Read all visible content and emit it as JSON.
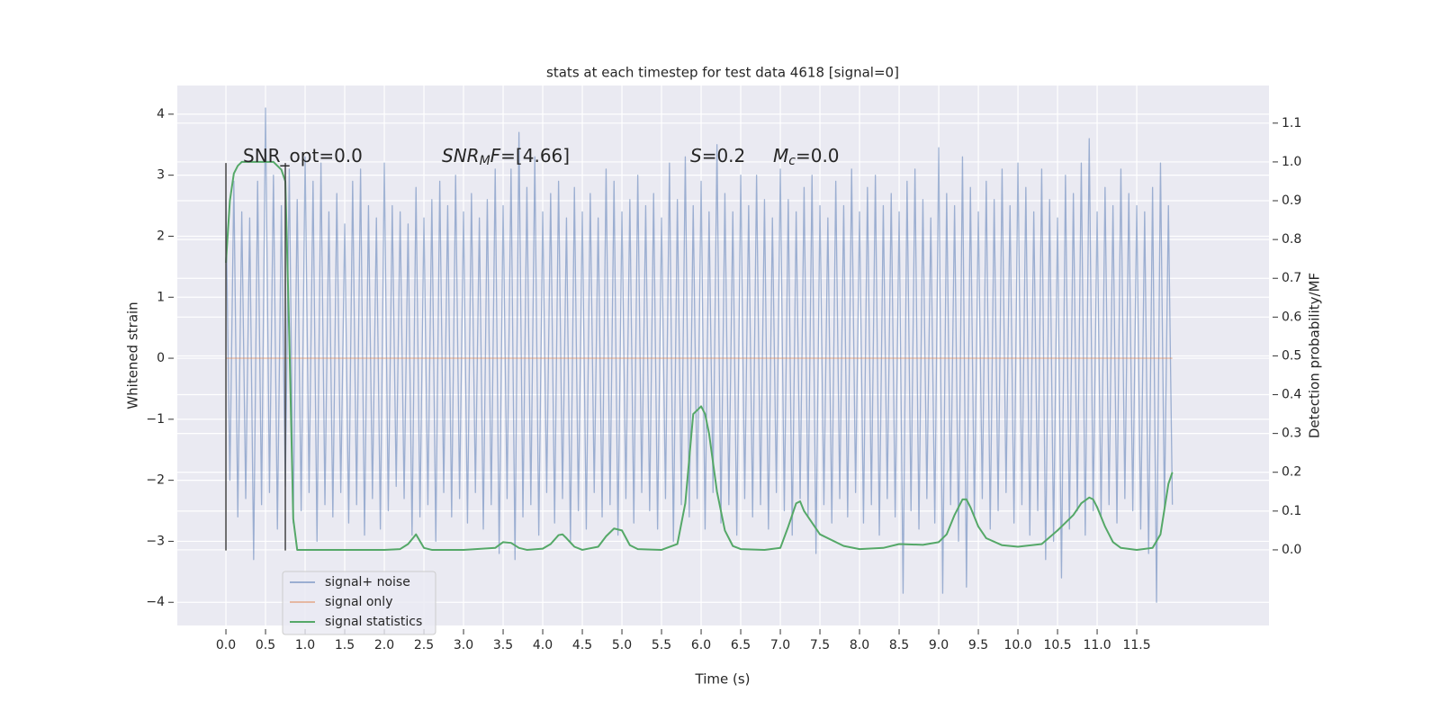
{
  "chart_data": {
    "type": "line",
    "title": "stats at each timestep for test data 4618 [signal=0]",
    "xlabel": "Time (s)",
    "ylabel": "Whitened strain",
    "y2label": "Detection probability/MF",
    "xlim": [
      -0.614,
      13.17
    ],
    "ylim": [
      -4.38,
      4.47
    ],
    "y2lim": [
      -0.195,
      1.197
    ],
    "xticks": [
      {
        "value": 0,
        "label": "0.0"
      },
      0.5,
      {
        "value": 1,
        "label": "1.0"
      },
      1.5,
      {
        "value": 2,
        "label": "2.0"
      },
      2.5,
      {
        "value": 3,
        "label": "3.0"
      },
      3.5,
      {
        "value": 4,
        "label": "4.0"
      },
      4.5,
      {
        "value": 5,
        "label": "5.0"
      },
      5.5,
      {
        "value": 6,
        "label": "6.0"
      },
      6.5,
      {
        "value": 7,
        "label": "7.0"
      },
      7.5,
      {
        "value": 8,
        "label": "8.0"
      },
      8.5,
      {
        "value": 9,
        "label": "9.0"
      },
      9.5,
      {
        "value": 10,
        "label": "10.0"
      },
      10.5,
      {
        "value": 11,
        "label": "11.0"
      },
      11.5
    ],
    "yticks": [
      {
        "value": -4,
        "label": "−4"
      },
      {
        "value": -3,
        "label": "−3"
      },
      {
        "value": -2,
        "label": "−2"
      },
      {
        "value": -1,
        "label": "−1"
      },
      0,
      1,
      2,
      3,
      4
    ],
    "y2ticks": [
      {
        "value": 0,
        "label": "0.0"
      },
      0.1,
      0.2,
      0.3,
      0.4,
      0.5,
      0.6,
      0.7,
      0.8,
      0.9,
      {
        "value": 1,
        "label": "1.0"
      },
      1.1
    ],
    "grid": true,
    "legend": "lower left",
    "x": [
      0,
      0.05,
      0.1,
      0.15,
      0.2,
      0.25,
      0.3,
      0.35,
      0.4,
      0.45,
      0.5,
      0.55,
      0.6,
      0.65,
      0.7,
      0.75,
      0.8,
      0.85,
      0.9,
      0.95,
      1,
      1.05,
      1.1,
      1.15,
      1.2,
      1.25,
      1.3,
      1.35,
      1.4,
      1.45,
      1.5,
      1.55,
      1.6,
      1.65,
      1.7,
      1.75,
      1.8,
      1.85,
      1.9,
      1.95,
      2,
      2.05,
      2.1,
      2.15,
      2.2,
      2.25,
      2.3,
      2.35,
      2.4,
      2.45,
      2.5,
      2.55,
      2.6,
      2.65,
      2.7,
      2.75,
      2.8,
      2.85,
      2.9,
      2.95,
      3,
      3.05,
      3.1,
      3.15,
      3.2,
      3.25,
      3.3,
      3.35,
      3.4,
      3.45,
      3.5,
      3.55,
      3.6,
      3.65,
      3.7,
      3.75,
      3.8,
      3.85,
      3.9,
      3.95,
      4,
      4.05,
      4.1,
      4.15,
      4.2,
      4.25,
      4.3,
      4.35,
      4.4,
      4.45,
      4.5,
      4.55,
      4.6,
      4.65,
      4.7,
      4.75,
      4.8,
      4.85,
      4.9,
      4.95,
      5,
      5.05,
      5.1,
      5.15,
      5.2,
      5.25,
      5.3,
      5.35,
      5.4,
      5.45,
      5.5,
      5.55,
      5.6,
      5.65,
      5.7,
      5.75,
      5.8,
      5.85,
      5.9,
      5.95,
      6,
      6.05,
      6.1,
      6.15,
      6.2,
      6.25,
      6.3,
      6.35,
      6.4,
      6.45,
      6.5,
      6.55,
      6.6,
      6.65,
      6.7,
      6.75,
      6.8,
      6.85,
      6.9,
      6.95,
      7,
      7.05,
      7.1,
      7.15,
      7.2,
      7.25,
      7.3,
      7.35,
      7.4,
      7.45,
      7.5,
      7.55,
      7.6,
      7.65,
      7.7,
      7.75,
      7.8,
      7.85,
      7.9,
      7.95,
      8,
      8.05,
      8.1,
      8.15,
      8.2,
      8.25,
      8.3,
      8.35,
      8.4,
      8.45,
      8.5,
      8.55,
      8.6,
      8.65,
      8.7,
      8.75,
      8.8,
      8.85,
      8.9,
      8.95,
      9,
      9.05,
      9.1,
      9.15,
      9.2,
      9.25,
      9.3,
      9.35,
      9.4,
      9.45,
      9.5,
      9.55,
      9.6,
      9.65,
      9.7,
      9.75,
      9.8,
      9.85,
      9.9,
      9.95,
      10,
      10.05,
      10.1,
      10.15,
      10.2,
      10.25,
      10.3,
      10.35,
      10.4,
      10.45,
      10.5,
      10.55,
      10.6,
      10.65,
      10.7,
      10.75,
      10.8,
      10.85,
      10.9,
      10.95,
      11,
      11.05,
      11.1,
      11.15,
      11.2,
      11.25,
      11.3,
      11.35,
      11.4,
      11.45,
      11.5,
      11.55,
      11.6,
      11.65,
      11.7,
      11.75,
      11.8,
      11.85,
      11.9,
      11.95
    ],
    "series": [
      {
        "name": "signal+ noise",
        "color": "#4c72b0",
        "alpha": 0.5,
        "axis": "y",
        "values": [
          2.6,
          -2.0,
          2.9,
          -2.6,
          2.4,
          -2.3,
          2.3,
          -3.3,
          2.9,
          -2.4,
          4.1,
          -2.2,
          3.0,
          -2.8,
          2.5,
          -2.1,
          3.1,
          -2.7,
          2.6,
          -2.5,
          3.3,
          -2.2,
          2.9,
          -3.0,
          3.2,
          -2.4,
          2.4,
          -2.6,
          2.7,
          -2.2,
          2.2,
          -2.7,
          2.9,
          -2.4,
          3.1,
          -2.9,
          2.5,
          -2.3,
          2.3,
          -2.8,
          3.2,
          -2.5,
          2.5,
          -2.1,
          2.4,
          -2.3,
          2.2,
          -2.9,
          2.8,
          -2.6,
          2.3,
          -2.4,
          2.6,
          -3.0,
          2.9,
          -2.2,
          2.5,
          -2.6,
          3.0,
          -2.3,
          2.4,
          -2.7,
          2.7,
          -2.2,
          2.3,
          -2.8,
          2.6,
          -2.4,
          3.1,
          -3.2,
          2.5,
          -2.3,
          3.1,
          -3.3,
          3.7,
          -2.6,
          2.8,
          -2.4,
          3.3,
          -2.9,
          2.4,
          -2.2,
          2.7,
          -2.7,
          2.9,
          -2.3,
          2.3,
          -3.0,
          2.8,
          -2.5,
          2.4,
          -2.8,
          2.7,
          -2.2,
          2.3,
          -2.6,
          3.1,
          -2.4,
          2.9,
          -2.9,
          2.4,
          -2.3,
          2.6,
          -2.7,
          3.0,
          -2.2,
          2.5,
          -2.5,
          2.7,
          -2.8,
          2.3,
          -2.3,
          3.2,
          -3.0,
          2.6,
          -2.4,
          3.3,
          -2.6,
          2.5,
          -2.3,
          2.9,
          -2.8,
          2.4,
          -2.2,
          3.5,
          -2.7,
          2.7,
          -2.4,
          2.4,
          -2.9,
          3.0,
          -2.3,
          2.5,
          -2.6,
          3.0,
          -2.4,
          2.6,
          -2.8,
          2.3,
          -2.2,
          3.1,
          -2.5,
          2.6,
          -2.9,
          2.4,
          -2.3,
          2.8,
          -2.6,
          3.0,
          -3.2,
          2.5,
          -2.4,
          2.3,
          -2.7,
          2.9,
          -2.3,
          2.5,
          -2.6,
          3.1,
          -2.2,
          2.4,
          -2.7,
          2.8,
          -2.4,
          3.0,
          -2.9,
          2.5,
          -2.3,
          2.7,
          -2.6,
          2.4,
          -3.85,
          2.9,
          -2.5,
          3.1,
          -2.8,
          2.6,
          -2.3,
          2.3,
          -2.7,
          3.45,
          -3.85,
          2.7,
          -2.4,
          2.5,
          -3.0,
          3.3,
          -3.75,
          2.8,
          -2.6,
          2.4,
          -2.3,
          2.9,
          -2.8,
          2.6,
          -2.5,
          3.1,
          -2.2,
          2.5,
          -2.7,
          3.2,
          -2.4,
          2.8,
          -2.9,
          2.4,
          -2.5,
          3.1,
          -3.3,
          2.6,
          -3.0,
          2.3,
          -3.6,
          3.0,
          -2.8,
          2.7,
          -2.5,
          3.2,
          -2.9,
          3.6,
          -2.5,
          2.4,
          -2.6,
          2.8,
          -2.4,
          2.5,
          -2.7,
          3.1,
          -2.3,
          2.7,
          -2.5,
          2.5,
          -2.8,
          2.4,
          -3.2,
          2.8,
          -4.0,
          3.2,
          -2.5,
          2.5,
          -2.4
        ]
      },
      {
        "name": "signal only",
        "color": "#dd8452",
        "alpha": 0.5,
        "axis": "y",
        "x": [
          0,
          11.95
        ],
        "values": [
          0,
          0
        ]
      },
      {
        "name": "signal statistics",
        "color": "#55a868",
        "axis": "y2",
        "x": [
          0,
          0.05,
          0.1,
          0.15,
          0.2,
          0.3,
          0.4,
          0.5,
          0.6,
          0.7,
          0.75,
          0.8,
          0.85,
          0.9,
          1.0,
          1.5,
          2.0,
          2.2,
          2.3,
          2.4,
          2.5,
          2.6,
          3.0,
          3.4,
          3.5,
          3.6,
          3.7,
          3.8,
          4.0,
          4.1,
          4.2,
          4.25,
          4.3,
          4.4,
          4.5,
          4.7,
          4.8,
          4.9,
          5.0,
          5.1,
          5.2,
          5.5,
          5.7,
          5.8,
          5.9,
          5.95,
          6.0,
          6.05,
          6.1,
          6.2,
          6.3,
          6.4,
          6.5,
          6.8,
          7.0,
          7.1,
          7.2,
          7.25,
          7.3,
          7.5,
          7.8,
          8.0,
          8.3,
          8.5,
          8.8,
          9.0,
          9.1,
          9.2,
          9.3,
          9.35,
          9.4,
          9.5,
          9.6,
          9.8,
          10.0,
          10.3,
          10.5,
          10.6,
          10.7,
          10.8,
          10.9,
          10.95,
          11.0,
          11.1,
          11.2,
          11.3,
          11.5,
          11.7,
          11.8,
          11.9,
          11.95
        ],
        "values": [
          0.74,
          0.9,
          0.97,
          0.99,
          1.0,
          1.0,
          1.0,
          1.0,
          1.0,
          0.98,
          0.95,
          0.55,
          0.08,
          0.0,
          0.0,
          0.0,
          0.0,
          0.002,
          0.015,
          0.04,
          0.005,
          0.0,
          0.0,
          0.005,
          0.02,
          0.018,
          0.005,
          0.0,
          0.003,
          0.015,
          0.038,
          0.04,
          0.03,
          0.008,
          0.0,
          0.008,
          0.035,
          0.055,
          0.05,
          0.012,
          0.002,
          0.0,
          0.015,
          0.12,
          0.35,
          0.36,
          0.37,
          0.35,
          0.3,
          0.15,
          0.05,
          0.01,
          0.002,
          0.0,
          0.005,
          0.06,
          0.12,
          0.125,
          0.1,
          0.04,
          0.01,
          0.002,
          0.005,
          0.015,
          0.013,
          0.02,
          0.04,
          0.09,
          0.13,
          0.13,
          0.11,
          0.06,
          0.03,
          0.012,
          0.008,
          0.015,
          0.05,
          0.07,
          0.09,
          0.12,
          0.135,
          0.13,
          0.11,
          0.06,
          0.02,
          0.005,
          0.0,
          0.005,
          0.04,
          0.17,
          0.2
        ]
      }
    ],
    "vlines": {
      "x": [
        0,
        0.75
      ],
      "ymin": -3.15,
      "ymax": 3.2,
      "color": "#444444"
    },
    "annotations": [
      {
        "runs": [
          {
            "text": "SNR_opt=0.0"
          }
        ]
      },
      {
        "runs": [
          {
            "text": "SNR",
            "italic": true
          },
          {
            "text": "M",
            "italic": true,
            "sub": true
          },
          {
            "text": "F",
            "italic": true
          },
          {
            "text": "=[4.66]"
          }
        ]
      },
      {
        "runs": [
          {
            "text": "S",
            "italic": true
          },
          {
            "text": "=0.2"
          }
        ]
      },
      {
        "runs": [
          {
            "text": "M",
            "italic": true
          },
          {
            "text": "c",
            "italic": true,
            "sub": true
          },
          {
            "text": "=0.0"
          }
        ]
      }
    ]
  }
}
